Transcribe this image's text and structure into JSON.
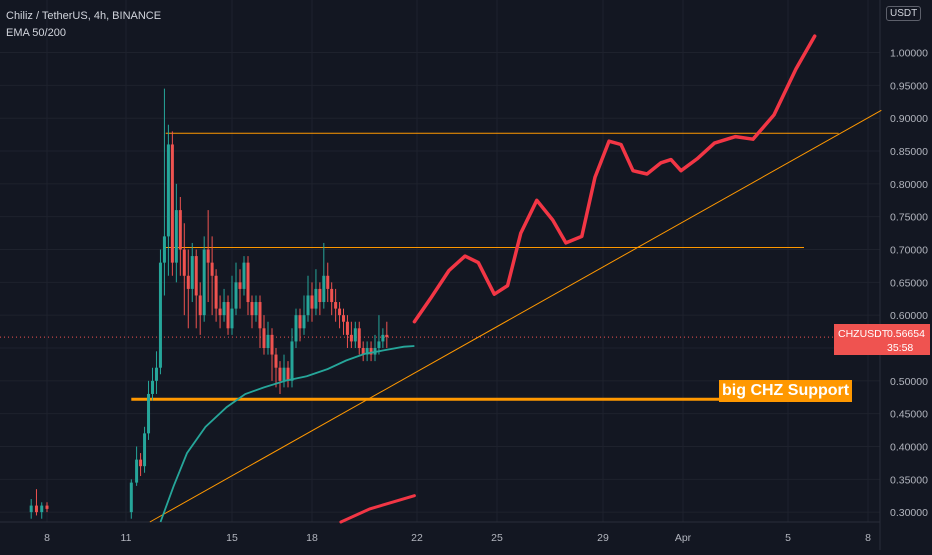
{
  "header": {
    "title": "Chiliz / TetherUS, 4h, BINANCE",
    "indicator": "EMA 50/200"
  },
  "currency_label": "USDT",
  "price_tag": {
    "symbol": "CHZUSDT",
    "price": "0.56654",
    "countdown": "35:58"
  },
  "annotation_support": "big CHZ Support",
  "colors": {
    "background": "#131722",
    "up": "#26a69a",
    "down": "#ef5350",
    "ema": "#26a69a",
    "level": "#ff9800",
    "projection": "#f23645"
  },
  "chart_data": {
    "type": "candlestick",
    "x_tick_labels": [
      "8",
      "11",
      "15",
      "18",
      "22",
      "25",
      "29",
      "Apr",
      "5",
      "8"
    ],
    "y_tick_labels": [
      "1.00000",
      "0.95000",
      "0.90000",
      "0.85000",
      "0.80000",
      "0.75000",
      "0.70000",
      "0.65000",
      "0.60000",
      "0.55000",
      "0.50000",
      "0.45000",
      "0.40000",
      "0.35000",
      "0.30000"
    ],
    "y_ticks": [
      1.0,
      0.95,
      0.9,
      0.85,
      0.8,
      0.75,
      0.7,
      0.65,
      0.6,
      0.55,
      0.5,
      0.45,
      0.4,
      0.35,
      0.3
    ],
    "ylim": [
      0.285,
      1.08
    ],
    "last_price": 0.56654,
    "horizontal_levels": [
      0.877,
      0.703,
      0.472
    ],
    "trendline": {
      "from": [
        11.9,
        0.285
      ],
      "to": [
        39.5,
        0.912
      ]
    },
    "ema": [
      [
        12.3,
        0.285
      ],
      [
        12.8,
        0.34
      ],
      [
        13.3,
        0.39
      ],
      [
        14.0,
        0.43
      ],
      [
        14.8,
        0.46
      ],
      [
        15.5,
        0.48
      ],
      [
        16.2,
        0.49
      ],
      [
        17.0,
        0.5
      ],
      [
        17.8,
        0.507
      ],
      [
        18.6,
        0.518
      ],
      [
        19.3,
        0.531
      ],
      [
        20.0,
        0.541
      ],
      [
        20.8,
        0.547
      ],
      [
        21.5,
        0.552
      ],
      [
        21.9,
        0.553
      ]
    ],
    "projection": [
      [
        21.9,
        0.59
      ],
      [
        22.5,
        0.625
      ],
      [
        23.2,
        0.668
      ],
      [
        23.8,
        0.69
      ],
      [
        24.3,
        0.68
      ],
      [
        24.9,
        0.632
      ],
      [
        25.4,
        0.645
      ],
      [
        25.9,
        0.725
      ],
      [
        26.5,
        0.775
      ],
      [
        27.1,
        0.745
      ],
      [
        27.6,
        0.71
      ],
      [
        28.2,
        0.72
      ],
      [
        28.7,
        0.81
      ],
      [
        29.3,
        0.865
      ],
      [
        29.9,
        0.86
      ],
      [
        30.5,
        0.82
      ],
      [
        31.2,
        0.815
      ],
      [
        31.9,
        0.832
      ],
      [
        32.4,
        0.837
      ],
      [
        32.9,
        0.82
      ],
      [
        33.4,
        0.838
      ],
      [
        33.9,
        0.862
      ],
      [
        34.5,
        0.872
      ],
      [
        35.0,
        0.868
      ],
      [
        35.6,
        0.905
      ],
      [
        36.3,
        0.975
      ],
      [
        37.0,
        1.025
      ]
    ],
    "projection_lower": [
      [
        19.1,
        0.285
      ],
      [
        20.2,
        0.305
      ],
      [
        21.9,
        0.325
      ]
    ],
    "candles": [
      [
        7.4,
        0.3,
        0.31,
        0.29,
        0.32
      ],
      [
        7.6,
        0.31,
        0.3,
        0.295,
        0.335
      ],
      [
        7.8,
        0.3,
        0.31,
        0.29,
        0.315
      ],
      [
        8.0,
        0.31,
        0.305,
        0.3,
        0.315
      ],
      [
        11.2,
        0.3,
        0.345,
        0.29,
        0.35
      ],
      [
        11.4,
        0.345,
        0.38,
        0.34,
        0.4
      ],
      [
        11.55,
        0.38,
        0.37,
        0.355,
        0.39
      ],
      [
        11.7,
        0.37,
        0.42,
        0.36,
        0.43
      ],
      [
        11.85,
        0.42,
        0.48,
        0.41,
        0.5
      ],
      [
        12.0,
        0.48,
        0.5,
        0.47,
        0.52
      ],
      [
        12.15,
        0.5,
        0.52,
        0.48,
        0.545
      ],
      [
        12.3,
        0.52,
        0.68,
        0.51,
        0.7
      ],
      [
        12.45,
        0.68,
        0.72,
        0.63,
        0.945
      ],
      [
        12.6,
        0.72,
        0.86,
        0.66,
        0.89
      ],
      [
        12.75,
        0.86,
        0.68,
        0.66,
        0.88
      ],
      [
        12.9,
        0.68,
        0.76,
        0.65,
        0.8
      ],
      [
        13.05,
        0.76,
        0.7,
        0.66,
        0.78
      ],
      [
        13.2,
        0.7,
        0.66,
        0.6,
        0.74
      ],
      [
        13.35,
        0.66,
        0.64,
        0.58,
        0.7
      ],
      [
        13.5,
        0.64,
        0.69,
        0.62,
        0.71
      ],
      [
        13.65,
        0.69,
        0.63,
        0.58,
        0.7
      ],
      [
        13.8,
        0.63,
        0.6,
        0.57,
        0.65
      ],
      [
        13.95,
        0.6,
        0.7,
        0.59,
        0.72
      ],
      [
        14.1,
        0.7,
        0.68,
        0.62,
        0.76
      ],
      [
        14.25,
        0.68,
        0.66,
        0.6,
        0.72
      ],
      [
        14.4,
        0.66,
        0.61,
        0.59,
        0.67
      ],
      [
        14.55,
        0.61,
        0.6,
        0.58,
        0.63
      ],
      [
        14.7,
        0.6,
        0.62,
        0.59,
        0.64
      ],
      [
        14.85,
        0.62,
        0.58,
        0.57,
        0.63
      ],
      [
        15.0,
        0.58,
        0.61,
        0.57,
        0.66
      ],
      [
        15.15,
        0.61,
        0.65,
        0.6,
        0.68
      ],
      [
        15.3,
        0.65,
        0.64,
        0.61,
        0.67
      ],
      [
        15.45,
        0.64,
        0.68,
        0.63,
        0.69
      ],
      [
        15.6,
        0.68,
        0.62,
        0.6,
        0.69
      ],
      [
        15.75,
        0.62,
        0.6,
        0.58,
        0.63
      ],
      [
        15.9,
        0.6,
        0.62,
        0.59,
        0.63
      ],
      [
        16.05,
        0.62,
        0.58,
        0.55,
        0.63
      ],
      [
        16.2,
        0.58,
        0.55,
        0.54,
        0.6
      ],
      [
        16.35,
        0.55,
        0.57,
        0.54,
        0.59
      ],
      [
        16.5,
        0.57,
        0.54,
        0.5,
        0.58
      ],
      [
        16.65,
        0.54,
        0.52,
        0.49,
        0.55
      ],
      [
        16.8,
        0.52,
        0.5,
        0.48,
        0.53
      ],
      [
        16.95,
        0.5,
        0.52,
        0.49,
        0.54
      ],
      [
        17.1,
        0.52,
        0.5,
        0.49,
        0.53
      ],
      [
        17.25,
        0.5,
        0.56,
        0.49,
        0.58
      ],
      [
        17.4,
        0.56,
        0.6,
        0.55,
        0.61
      ],
      [
        17.55,
        0.6,
        0.58,
        0.56,
        0.61
      ],
      [
        17.7,
        0.58,
        0.6,
        0.57,
        0.63
      ],
      [
        17.85,
        0.6,
        0.63,
        0.59,
        0.66
      ],
      [
        18.0,
        0.63,
        0.61,
        0.59,
        0.65
      ],
      [
        18.15,
        0.61,
        0.64,
        0.6,
        0.67
      ],
      [
        18.3,
        0.64,
        0.62,
        0.6,
        0.65
      ],
      [
        18.45,
        0.62,
        0.66,
        0.61,
        0.71
      ],
      [
        18.6,
        0.66,
        0.64,
        0.62,
        0.68
      ],
      [
        18.75,
        0.64,
        0.62,
        0.6,
        0.65
      ],
      [
        18.9,
        0.62,
        0.61,
        0.59,
        0.64
      ],
      [
        19.05,
        0.61,
        0.6,
        0.58,
        0.62
      ],
      [
        19.2,
        0.6,
        0.59,
        0.57,
        0.61
      ],
      [
        19.35,
        0.59,
        0.57,
        0.55,
        0.6
      ],
      [
        19.5,
        0.57,
        0.56,
        0.55,
        0.59
      ],
      [
        19.65,
        0.56,
        0.58,
        0.55,
        0.59
      ],
      [
        19.8,
        0.58,
        0.55,
        0.54,
        0.59
      ],
      [
        19.95,
        0.55,
        0.54,
        0.53,
        0.56
      ],
      [
        20.1,
        0.54,
        0.55,
        0.53,
        0.56
      ],
      [
        20.25,
        0.55,
        0.54,
        0.53,
        0.56
      ],
      [
        20.4,
        0.54,
        0.55,
        0.53,
        0.57
      ],
      [
        20.55,
        0.55,
        0.56,
        0.54,
        0.6
      ],
      [
        20.7,
        0.56,
        0.57,
        0.55,
        0.58
      ],
      [
        20.85,
        0.57,
        0.56654,
        0.55,
        0.59
      ]
    ]
  }
}
